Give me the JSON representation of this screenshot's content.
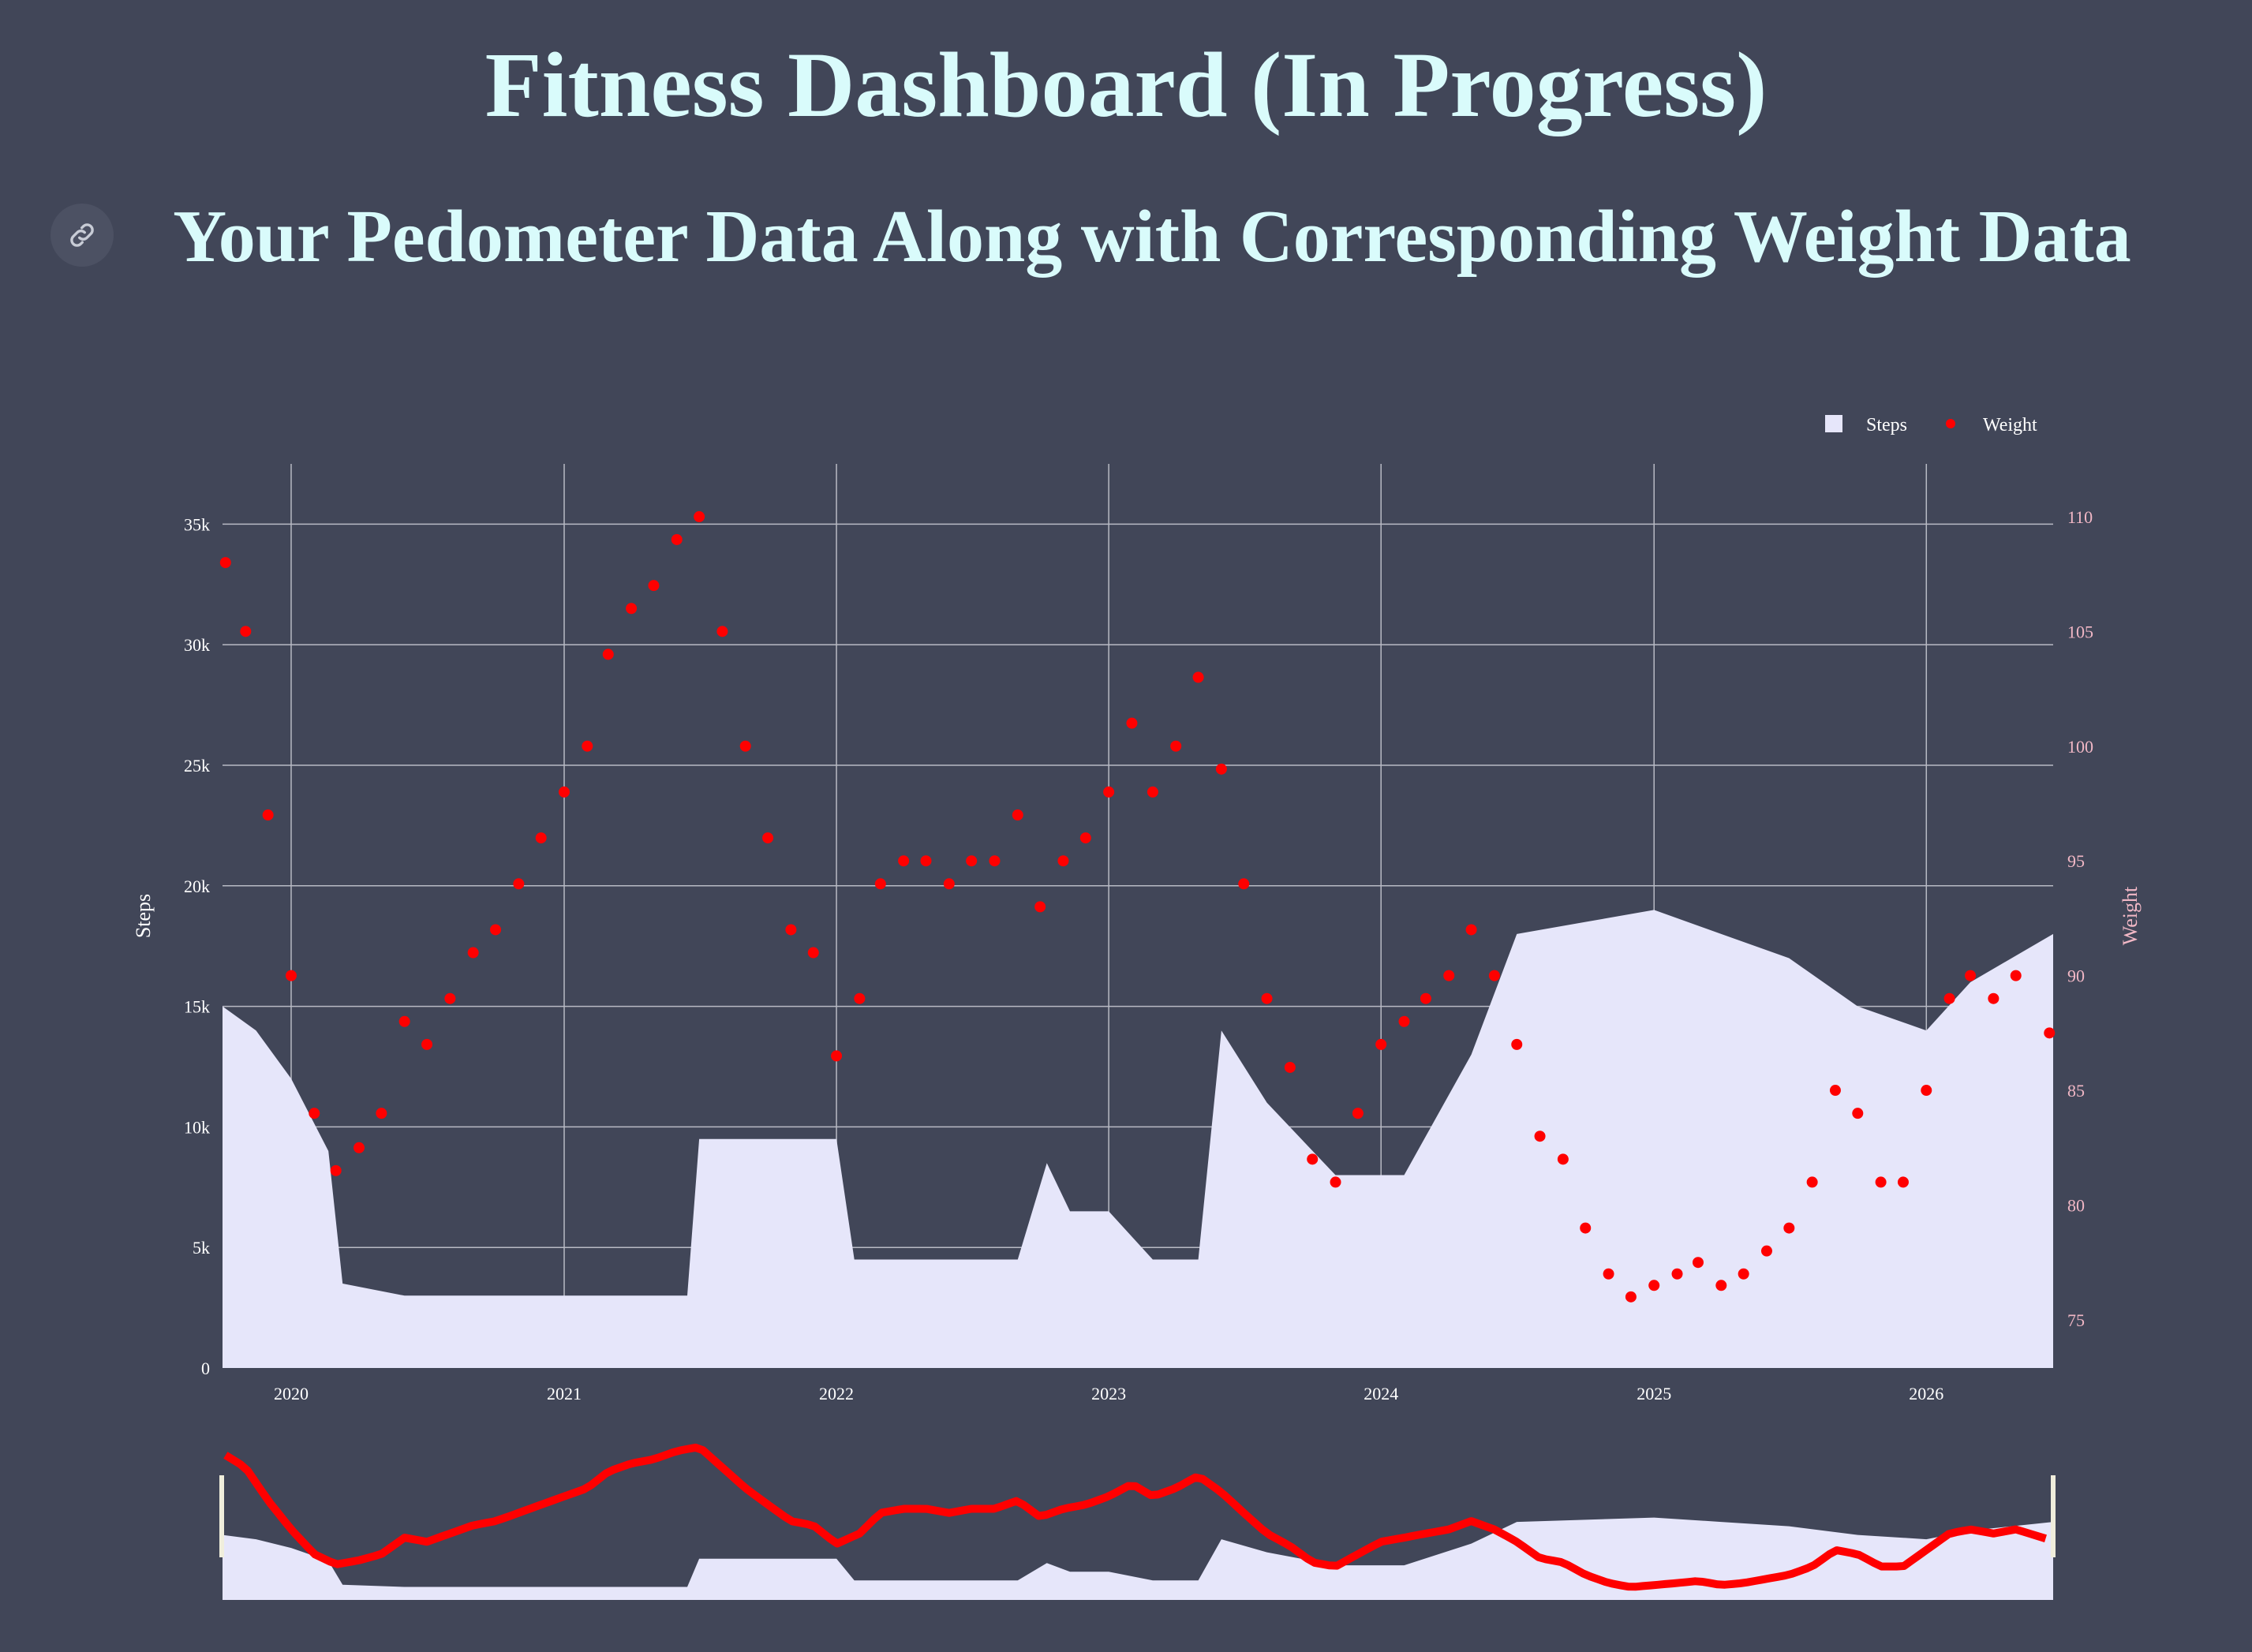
{
  "header": {
    "title": "Fitness Dashboard (In Progress)",
    "subtitle": "Your Pedometer Data Along with Corresponding Weight Data",
    "link_icon": "link-icon"
  },
  "colors": {
    "background": "#414658",
    "title": "#d9fbfb",
    "steps_fill": "#e6e6fa",
    "weight_marker": "#ff0000",
    "grid": "#b8bac4",
    "right_axis_text": "#f2b8c6"
  },
  "chart_data": {
    "type": "bar+scatter",
    "title": "",
    "x_type": "date",
    "x_range": [
      "2019-10-01",
      "2026-06-20"
    ],
    "x_ticks": [
      "2020",
      "2021",
      "2022",
      "2023",
      "2024",
      "2025",
      "2026"
    ],
    "ylabel": "Steps",
    "ylim": [
      0,
      37500
    ],
    "y_ticks": [
      {
        "value": 0,
        "label": "0"
      },
      {
        "value": 5000,
        "label": "5k"
      },
      {
        "value": 10000,
        "label": "10k"
      },
      {
        "value": 15000,
        "label": "15k"
      },
      {
        "value": 20000,
        "label": "20k"
      },
      {
        "value": 25000,
        "label": "25k"
      },
      {
        "value": 30000,
        "label": "30k"
      },
      {
        "value": 35000,
        "label": "35k"
      }
    ],
    "y2label": "Weight",
    "y2lim": [
      72.9,
      112.3
    ],
    "y2_ticks": [
      {
        "value": 75,
        "label": "75"
      },
      {
        "value": 80,
        "label": "80"
      },
      {
        "value": 85,
        "label": "85"
      },
      {
        "value": 90,
        "label": "90"
      },
      {
        "value": 95,
        "label": "95"
      },
      {
        "value": 100,
        "label": "100"
      },
      {
        "value": 105,
        "label": "105"
      },
      {
        "value": 110,
        "label": "110"
      }
    ],
    "legend": {
      "position": "top-right",
      "entries": [
        "Steps",
        "Weight"
      ]
    },
    "grid": true,
    "range_slider": true,
    "series": [
      {
        "name": "Steps",
        "kind": "bar",
        "axis": "y",
        "color": "#e6e6fa",
        "x": [
          "2019-10-01",
          "2019-11-15",
          "2020-01-01",
          "2020-02-20",
          "2020-03-10",
          "2020-06-01",
          "2020-09-01",
          "2021-01-01",
          "2021-04-01",
          "2021-06-15",
          "2021-07-01",
          "2021-10-01",
          "2022-01-01",
          "2022-01-25",
          "2022-05-01",
          "2022-09-01",
          "2022-10-10",
          "2022-11-10",
          "2023-01-01",
          "2023-03-01",
          "2023-05-01",
          "2023-06-01",
          "2023-08-01",
          "2023-11-01",
          "2024-02-01",
          "2024-05-01",
          "2024-07-01",
          "2024-10-01",
          "2025-01-01",
          "2025-04-01",
          "2025-07-01",
          "2025-10-01",
          "2026-01-01",
          "2026-03-01",
          "2026-06-20"
        ],
        "y": [
          15000,
          14000,
          12000,
          9000,
          3500,
          3000,
          3000,
          3000,
          3000,
          3000,
          9500,
          9500,
          9500,
          4500,
          4500,
          4500,
          8500,
          6500,
          6500,
          4500,
          4500,
          14000,
          11000,
          8000,
          8000,
          13000,
          18000,
          18500,
          19000,
          18000,
          17000,
          15000,
          14000,
          16000,
          18000
        ]
      },
      {
        "name": "Weight",
        "kind": "scatter",
        "axis": "y2",
        "color": "#ff0000",
        "x": [
          "2019-10-05",
          "2019-11-01",
          "2019-12-01",
          "2020-01-01",
          "2020-02-01",
          "2020-03-01",
          "2020-04-01",
          "2020-05-01",
          "2020-06-01",
          "2020-07-01",
          "2020-08-01",
          "2020-09-01",
          "2020-10-01",
          "2020-11-01",
          "2020-12-01",
          "2021-01-01",
          "2021-02-01",
          "2021-03-01",
          "2021-04-01",
          "2021-05-01",
          "2021-06-01",
          "2021-07-01",
          "2021-08-01",
          "2021-09-01",
          "2021-10-01",
          "2021-11-01",
          "2021-12-01",
          "2022-01-01",
          "2022-02-01",
          "2022-03-01",
          "2022-04-01",
          "2022-05-01",
          "2022-06-01",
          "2022-07-01",
          "2022-08-01",
          "2022-09-01",
          "2022-10-01",
          "2022-11-01",
          "2022-12-01",
          "2023-01-01",
          "2023-02-01",
          "2023-03-01",
          "2023-04-01",
          "2023-05-01",
          "2023-06-01",
          "2023-07-01",
          "2023-08-01",
          "2023-09-01",
          "2023-10-01",
          "2023-11-01",
          "2023-12-01",
          "2024-01-01",
          "2024-02-01",
          "2024-03-01",
          "2024-04-01",
          "2024-05-01",
          "2024-06-01",
          "2024-07-01",
          "2024-08-01",
          "2024-09-01",
          "2024-10-01",
          "2024-11-01",
          "2024-12-01",
          "2025-01-01",
          "2025-02-01",
          "2025-03-01",
          "2025-04-01",
          "2025-05-01",
          "2025-06-01",
          "2025-07-01",
          "2025-08-01",
          "2025-09-01",
          "2025-10-01",
          "2025-11-01",
          "2025-12-01",
          "2026-01-01",
          "2026-02-01",
          "2026-03-01",
          "2026-04-01",
          "2026-05-01",
          "2026-06-15"
        ],
        "y": [
          108,
          105,
          97,
          90,
          84,
          81.5,
          82.5,
          84,
          88,
          87,
          89,
          91,
          92,
          94,
          96,
          98,
          100,
          104,
          106,
          107,
          109,
          110,
          105,
          100,
          96,
          92,
          91,
          86.5,
          89,
          94,
          95,
          95,
          94,
          95,
          95,
          97,
          93,
          95,
          96,
          98,
          101,
          98,
          100,
          103,
          99,
          94,
          89,
          86,
          82,
          81,
          84,
          87,
          88,
          89,
          90,
          92,
          90,
          87,
          83,
          82,
          79,
          77,
          76,
          76.5,
          77,
          77.5,
          76.5,
          77,
          78,
          79,
          81,
          85,
          84,
          81,
          81,
          85,
          89,
          90,
          89,
          90,
          87.5
        ]
      }
    ]
  }
}
